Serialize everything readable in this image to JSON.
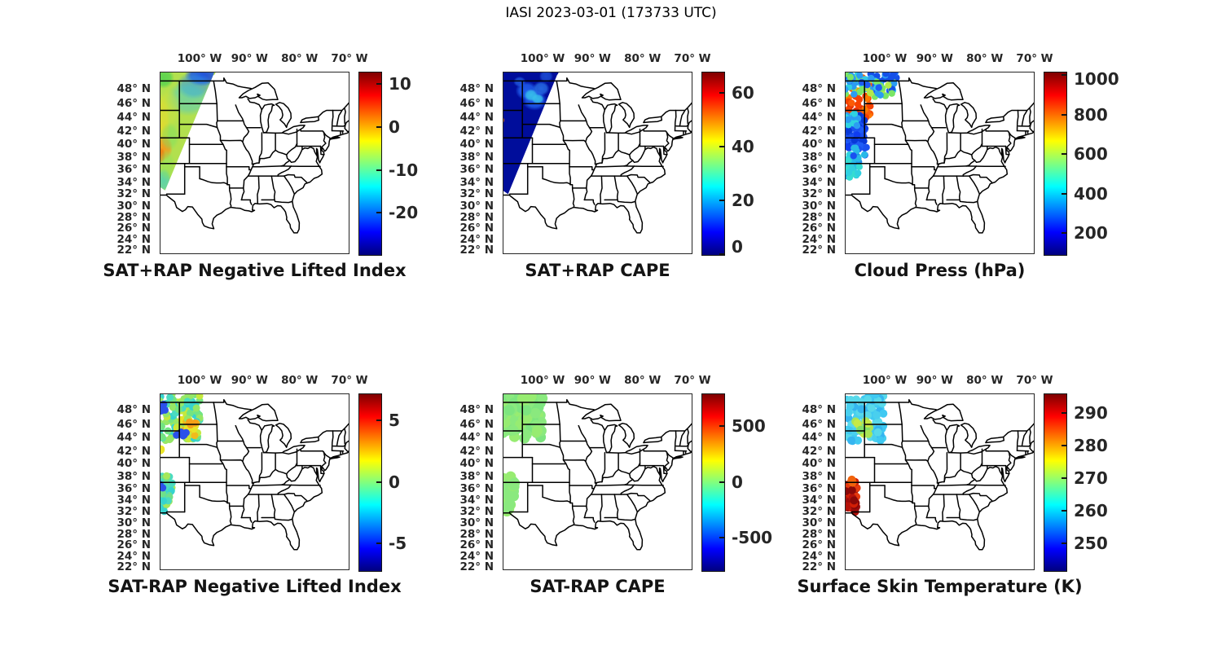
{
  "figure_title": "IASI 2023-03-01 (173733 UTC)",
  "axis": {
    "lon_tick_labels": [
      "100° W",
      "90° W",
      "80° W",
      "70° W"
    ],
    "lon_tick_values": [
      100,
      90,
      80,
      70
    ],
    "lat_tick_labels": [
      "48° N",
      "46° N",
      "44° N",
      "42° N",
      "40° N",
      "38° N",
      "36° N",
      "34° N",
      "32° N",
      "30° N",
      "28° N",
      "26° N",
      "24° N",
      "22° N"
    ],
    "lat_tick_values": [
      48,
      46,
      44,
      42,
      40,
      38,
      36,
      34,
      32,
      30,
      28,
      26,
      24,
      22
    ]
  },
  "colors": {
    "jet_stops": [
      "#00007f",
      "#0000ff",
      "#00ffff",
      "#ffff00",
      "#ff0000",
      "#7f0000"
    ],
    "axis_text": "#262626",
    "map_line": "#000000"
  },
  "chart_data": [
    {
      "type": "geo-swath",
      "title": "SAT+RAP Negative Lifted Index",
      "row": 0,
      "col": 0,
      "extent": {
        "lon_w": [
          108,
          70
        ],
        "lat_n": [
          21.3,
          50.2
        ]
      },
      "colorbar": {
        "vmin": -29.6,
        "vmax": 12.9,
        "ticks": [
          10,
          0,
          -10,
          -20
        ],
        "tick_labels": [
          "10",
          "0",
          "-10",
          "-20"
        ]
      },
      "layers": [
        {
          "kind": "swath",
          "polygon": [
            [
              108,
              50.1
            ],
            [
              97.05,
              50.1
            ],
            [
              106.9,
              32.6
            ],
            [
              108,
              33.2
            ]
          ],
          "base": "#b2e04e",
          "fringe": true,
          "regions": [
            {
              "c": [
                107.3,
                49.4
              ],
              "r": [
                1.6,
                1.0
              ],
              "color": "#55d34f",
              "alpha": 0.9
            },
            {
              "c": [
                99.5,
                49.7
              ],
              "r": [
                2.5,
                1.0
              ],
              "color": "#1747e3",
              "alpha": 0.95
            },
            {
              "c": [
                101.1,
                48.4
              ],
              "r": [
                2.6,
                1.3
              ],
              "color": "#2e8fe8",
              "alpha": 0.6
            },
            {
              "c": [
                102.3,
                46.6
              ],
              "r": [
                3.2,
                1.7
              ],
              "color": "#3fc8da",
              "alpha": 0.5
            },
            {
              "c": [
                107.5,
                43.0
              ],
              "r": [
                1.1,
                3.2
              ],
              "color": "#e6da2b",
              "alpha": 0.85
            },
            {
              "c": [
                106.2,
                45.3
              ],
              "r": [
                1.8,
                2.0
              ],
              "color": "#cfe23c",
              "alpha": 0.55
            },
            {
              "c": [
                107.1,
                39.5
              ],
              "r": [
                1.2,
                1.4
              ],
              "color": "#f29b1d",
              "alpha": 0.95
            },
            {
              "c": [
                107.8,
                38.3
              ],
              "r": [
                0.7,
                0.9
              ],
              "color": "#ee7d12",
              "alpha": 0.9
            },
            {
              "c": [
                106.0,
                41.2
              ],
              "r": [
                1.4,
                1.5
              ],
              "color": "#7adf62",
              "alpha": 0.5
            },
            {
              "c": [
                107.2,
                34.3
              ],
              "r": [
                1.1,
                1.4
              ],
              "color": "#43cfc3",
              "alpha": 0.75
            },
            {
              "c": [
                106.6,
                36.8
              ],
              "r": [
                1.2,
                1.8
              ],
              "color": "#8fe35a",
              "alpha": 0.5
            }
          ]
        }
      ]
    },
    {
      "type": "geo-swath",
      "title": "SAT+RAP CAPE",
      "row": 0,
      "col": 1,
      "extent": {
        "lon_w": [
          108,
          70
        ],
        "lat_n": [
          21.3,
          50.2
        ]
      },
      "colorbar": {
        "vmin": 0,
        "vmax": 67.8,
        "ticks": [
          60,
          40,
          20,
          0
        ],
        "tick_labels": [
          "60",
          "40",
          "20",
          "0"
        ]
      },
      "layers": [
        {
          "kind": "swath",
          "polygon": [
            [
              108,
              50.1
            ],
            [
              96.9,
              50.1
            ],
            [
              106.9,
              32.0
            ],
            [
              108,
              32.6
            ]
          ],
          "base": "#000d9b",
          "fringe": true,
          "regions": [
            {
              "c": [
                103.2,
                47.7
              ],
              "r": [
                1.6,
                0.9
              ],
              "color": "#2263f2",
              "alpha": 0.9
            },
            {
              "c": [
                101.6,
                46.4
              ],
              "r": [
                1.8,
                1.0
              ],
              "color": "#2263f2",
              "alpha": 0.9
            },
            {
              "c": [
                102.3,
                47.1
              ],
              "r": [
                1.0,
                0.6
              ],
              "color": "#38c3ea",
              "alpha": 0.9
            },
            {
              "c": [
                101.0,
                46.6
              ],
              "r": [
                0.9,
                0.5
              ],
              "color": "#38c3ea",
              "alpha": 0.9
            },
            {
              "c": [
                100.3,
                48.0
              ],
              "r": [
                1.2,
                0.7
              ],
              "color": "#2e7bf0",
              "alpha": 0.8
            },
            {
              "c": [
                104.6,
                48.9
              ],
              "r": [
                0.9,
                0.5
              ],
              "color": "#2a6cf0",
              "alpha": 0.7
            },
            {
              "c": [
                99.3,
                49.6
              ],
              "r": [
                1.0,
                0.6
              ],
              "color": "#2a6cf0",
              "alpha": 0.6
            },
            {
              "c": [
                108.0,
                43.6
              ],
              "r": [
                0.28,
                0.3
              ],
              "color": "#f07010",
              "alpha": 1
            }
          ]
        }
      ]
    },
    {
      "type": "geo-scatter",
      "title": "Cloud Press (hPa)",
      "row": 0,
      "col": 2,
      "extent": {
        "lon_w": [
          108,
          70
        ],
        "lat_n": [
          21.3,
          50.2
        ]
      },
      "colorbar": {
        "vmin": 93,
        "vmax": 1018,
        "ticks": [
          1000,
          800,
          600,
          400,
          200
        ],
        "tick_labels": [
          "1000",
          "800",
          "600",
          "400",
          "200"
        ]
      },
      "layers": [
        {
          "kind": "dots",
          "seed": 33,
          "radius": 4.2,
          "clusters": [
            {
              "lon": [
                107.8,
                102.6
              ],
              "lat": [
                43.9,
                47.3
              ],
              "count": 42,
              "colors": [
                "#fb5c07",
                "#f64100",
                "#e73208",
                "#ff7a00",
                "#f64100"
              ]
            },
            {
              "lon": [
                106.8,
                102.8
              ],
              "lat": [
                47.6,
                49.6
              ],
              "count": 10,
              "colors": [
                "#fb5c07",
                "#ff8c00",
                "#8fe35a"
              ]
            },
            {
              "lon": [
                104.3,
                97.6
              ],
              "lat": [
                46.8,
                50.15
              ],
              "count": 60,
              "colors": [
                "#1e5cf5",
                "#2b9cf2",
                "#32c8e8",
                "#1450e8",
                "#79e665",
                "#b4e84a"
              ],
              "clip": 1
            },
            {
              "lon": [
                108,
                104.2
              ],
              "lat": [
                47.2,
                50.15
              ],
              "count": 26,
              "colors": [
                "#1e5cf5",
                "#2fd2e0",
                "#2b9cf2",
                "#79e665"
              ]
            },
            {
              "lon": [
                108,
                103.9
              ],
              "lat": [
                39.4,
                44.3
              ],
              "count": 90,
              "colors": [
                "#0f3cf0",
                "#1a50f0",
                "#0838d8",
                "#1e5cf5"
              ]
            },
            {
              "lon": [
                108,
                105.0
              ],
              "lat": [
                42.8,
                44.6
              ],
              "count": 14,
              "colors": [
                "#2fd2e0",
                "#2b9cf2"
              ]
            },
            {
              "lon": [
                108,
                105.1
              ],
              "lat": [
                34.7,
                38.4
              ],
              "count": 34,
              "colors": [
                "#28b8e8",
                "#30d0e0",
                "#1f8fe8",
                "#35dcd2"
              ]
            },
            {
              "lon": [
                106.4,
                103.6
              ],
              "lat": [
                37.4,
                39.6
              ],
              "count": 10,
              "colors": [
                "#1a50f0",
                "#28b8e8"
              ]
            }
          ]
        }
      ]
    },
    {
      "type": "geo-scatter",
      "title": "SAT-RAP Negative Lifted Index",
      "row": 1,
      "col": 0,
      "extent": {
        "lon_w": [
          108,
          70
        ],
        "lat_n": [
          21.3,
          50.2
        ]
      },
      "colorbar": {
        "vmin": -7.15,
        "vmax": 7.15,
        "ticks": [
          5,
          0,
          -5
        ],
        "tick_labels": [
          "5",
          "0",
          "-5"
        ]
      },
      "layers": [
        {
          "kind": "dots",
          "seed": 44,
          "radius": 4.5,
          "clusters": [
            {
              "lon": [
                108,
                99.9
              ],
              "lat": [
                43.6,
                50.1
              ],
              "count": 120,
              "colors": [
                "#36d3cf",
                "#4adbc0",
                "#72e482",
                "#95e766",
                "#c4e93e",
                "#36d3cf",
                "#95e766"
              ],
              "clip": 1
            },
            {
              "lon": [
                104.6,
                100.4
              ],
              "lat": [
                44.3,
                46.8
              ],
              "count": 42,
              "colors": [
                "#e9e426",
                "#c4e93e",
                "#f0bb1c",
                "#95e766",
                "#e9e426"
              ]
            },
            {
              "lon": [
                108,
                106.9
              ],
              "lat": [
                47.5,
                49.2
              ],
              "count": 5,
              "colors": [
                "#2b50ea"
              ]
            },
            {
              "lon": [
                104.8,
                102.2
              ],
              "lat": [
                44.2,
                45.1
              ],
              "count": 5,
              "colors": [
                "#2b50ea"
              ]
            },
            {
              "lon": [
                102.6,
                100.8
              ],
              "lat": [
                45.3,
                46.3
              ],
              "count": 3,
              "colors": [
                "#f5a018"
              ]
            },
            {
              "lon": [
                108,
                107.5
              ],
              "lat": [
                41.8,
                42.6
              ],
              "count": 3,
              "colors": [
                "#e9e426",
                "#36d3cf"
              ]
            },
            {
              "lon": [
                108,
                105.4
              ],
              "lat": [
                31.9,
                38.1
              ],
              "count": 52,
              "colors": [
                "#36d3cf",
                "#6fe08a",
                "#a5e85a",
                "#4adbc0"
              ],
              "clip": 1
            },
            {
              "lon": [
                108,
                107.2
              ],
              "lat": [
                35.9,
                36.7
              ],
              "count": 2,
              "colors": [
                "#2b50ea"
              ]
            }
          ]
        }
      ]
    },
    {
      "type": "geo-scatter",
      "title": "SAT-RAP CAPE",
      "row": 1,
      "col": 1,
      "extent": {
        "lon_w": [
          108,
          70
        ],
        "lat_n": [
          21.3,
          50.2
        ]
      },
      "colorbar": {
        "vmin": -790,
        "vmax": 790,
        "ticks": [
          500,
          0,
          -500
        ],
        "tick_labels": [
          "500",
          "0",
          "-500"
        ]
      },
      "layers": [
        {
          "kind": "dots",
          "seed": 55,
          "radius": 6.5,
          "clusters": [
            {
              "lon": [
                108,
                100.0
              ],
              "lat": [
                43.9,
                50.1
              ],
              "count": 95,
              "colors": [
                "#8ae97e",
                "#7de57f",
                "#97ec71"
              ],
              "clip": 1
            },
            {
              "lon": [
                108,
                105.6
              ],
              "lat": [
                31.9,
                38.2
              ],
              "count": 44,
              "colors": [
                "#8ae97e",
                "#97ec71"
              ],
              "clip": 1
            }
          ]
        }
      ]
    },
    {
      "type": "geo-scatter",
      "title": "Surface Skin Temperature (K)",
      "row": 1,
      "col": 2,
      "extent": {
        "lon_w": [
          108,
          70
        ],
        "lat_n": [
          21.3,
          50.2
        ]
      },
      "colorbar": {
        "vmin": 241.6,
        "vmax": 296.1,
        "ticks": [
          290,
          280,
          270,
          260,
          250
        ],
        "tick_labels": [
          "290",
          "280",
          "270",
          "260",
          "250"
        ]
      },
      "layers": [
        {
          "kind": "dots",
          "seed": 66,
          "radius": 5,
          "clusters": [
            {
              "lon": [
                108,
                100.2
              ],
              "lat": [
                43.5,
                50.1
              ],
              "count": 95,
              "colors": [
                "#3fc9f2",
                "#35b5f0",
                "#58d9ea",
                "#49cfee"
              ],
              "clip": 1
            },
            {
              "lon": [
                106.4,
                103.0
              ],
              "lat": [
                44.4,
                46.4
              ],
              "count": 14,
              "colors": [
                "#a9e557",
                "#c6ea45",
                "#7fe06a"
              ]
            },
            {
              "lon": [
                103.4,
                100.4
              ],
              "lat": [
                49.2,
                50.1
              ],
              "count": 6,
              "colors": [
                "#3fc9f2",
                "#58d9ea"
              ]
            },
            {
              "lon": [
                108,
                105.6
              ],
              "lat": [
                31.8,
                37.0
              ],
              "count": 50,
              "colors": [
                "#b51209",
                "#d21e05",
                "#9c0c0c",
                "#e4390e",
                "#8a0808"
              ]
            },
            {
              "lon": [
                106.9,
                105.9
              ],
              "lat": [
                36.6,
                37.6
              ],
              "count": 6,
              "colors": [
                "#e4390e",
                "#f1630c",
                "#d21e05"
              ]
            }
          ]
        }
      ]
    }
  ]
}
